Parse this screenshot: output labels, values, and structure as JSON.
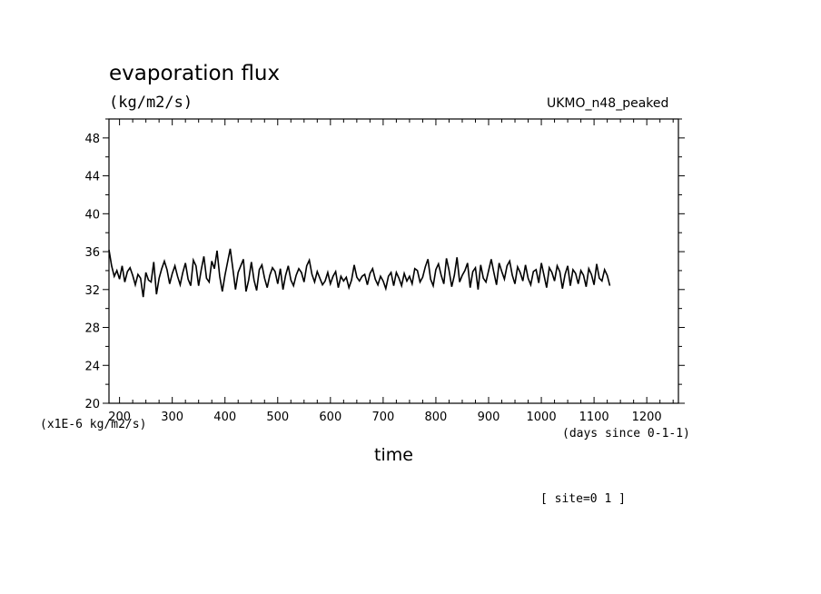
{
  "chart_data": {
    "type": "line",
    "title": "evaporation flux",
    "subtitle": "(kg/m2/s)",
    "model_label": "UKMO_n48_peaked",
    "ylabel_units": "(x1E-6 kg/m2/s)",
    "xlabel": "time",
    "xlabel_units": "(days since 0-1-1)",
    "footer": "[ site=0 1 ]",
    "xlim": [
      180,
      1260
    ],
    "ylim": [
      20,
      50
    ],
    "xticks": [
      200,
      300,
      400,
      500,
      600,
      700,
      800,
      900,
      1000,
      1100,
      1200
    ],
    "yticks": [
      20,
      24,
      28,
      32,
      36,
      40,
      44,
      48
    ],
    "grid": false,
    "series": [
      {
        "values_step_days": 5,
        "x_start": 180,
        "color": "#000000",
        "y": [
          36.2,
          34.5,
          33.4,
          34.0,
          33.1,
          34.5,
          32.8,
          33.9,
          34.3,
          33.5,
          32.5,
          33.6,
          33.2,
          31.2,
          33.8,
          33.0,
          32.8,
          34.9,
          31.5,
          33.2,
          34.2,
          35.0,
          34.1,
          32.6,
          33.7,
          34.5,
          33.4,
          32.5,
          33.8,
          34.8,
          33.1,
          32.4,
          35.1,
          34.5,
          32.4,
          34.1,
          35.5,
          33.2,
          32.8,
          35.0,
          34.2,
          36.1,
          33.4,
          31.8,
          33.5,
          34.9,
          36.3,
          34.2,
          32.0,
          33.8,
          34.5,
          35.2,
          31.8,
          33.0,
          34.9,
          33.0,
          31.9,
          34.1,
          34.6,
          33.2,
          32.2,
          33.5,
          34.3,
          33.9,
          32.6,
          34.2,
          32.0,
          33.5,
          34.5,
          33.0,
          32.4,
          33.5,
          34.2,
          33.8,
          32.8,
          34.5,
          35.1,
          33.6,
          32.8,
          33.9,
          33.2,
          32.5,
          32.9,
          33.8,
          32.6,
          33.4,
          33.9,
          32.2,
          33.4,
          32.9,
          33.3,
          32.2,
          33.0,
          34.6,
          33.3,
          32.9,
          33.4,
          33.6,
          32.5,
          33.7,
          34.2,
          33.1,
          32.5,
          33.4,
          32.9,
          32.1,
          33.4,
          33.8,
          32.4,
          33.8,
          33.2,
          32.4,
          33.7,
          32.9,
          33.4,
          32.6,
          34.2,
          34.0,
          32.8,
          33.3,
          34.4,
          35.2,
          33.1,
          32.4,
          34.1,
          34.7,
          33.5,
          32.6,
          35.3,
          34.0,
          32.3,
          33.5,
          35.4,
          32.8,
          33.5,
          34.0,
          34.8,
          32.2,
          33.9,
          34.3,
          32.0,
          34.6,
          33.2,
          32.8,
          34.0,
          35.2,
          33.8,
          32.5,
          34.8,
          33.9,
          33.1,
          34.5,
          35.0,
          33.5,
          32.6,
          34.4,
          33.8,
          32.9,
          34.6,
          33.2,
          32.5,
          33.9,
          34.1,
          32.7,
          34.8,
          33.5,
          32.2,
          34.3,
          33.8,
          32.9,
          34.5,
          33.9,
          32.1,
          33.6,
          34.5,
          32.4,
          34.1,
          33.7,
          32.6,
          34.0,
          33.5,
          32.3,
          34.2,
          33.6,
          32.5,
          34.7,
          33.2,
          32.9,
          34.1,
          33.5,
          32.4
        ]
      }
    ]
  }
}
